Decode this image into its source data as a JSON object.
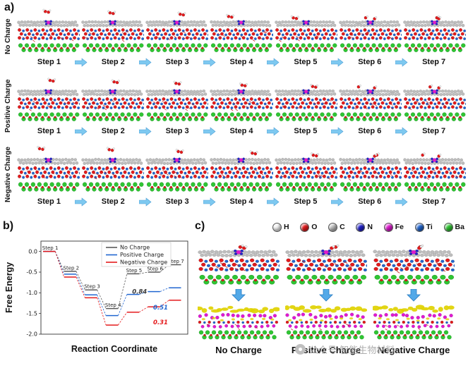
{
  "panel_a": {
    "label": "a)",
    "step_labels": [
      "Step 1",
      "Step 2",
      "Step 3",
      "Step 4",
      "Step 5",
      "Step 6",
      "Step 7"
    ],
    "rows": [
      {
        "name": "No Charge"
      },
      {
        "name": "Positive Charge"
      },
      {
        "name": "Negative Charge"
      }
    ]
  },
  "atom_legend": [
    {
      "symbol": "H",
      "color": "#f4f4f4"
    },
    {
      "symbol": "O",
      "color": "#e41a1c"
    },
    {
      "symbol": "C",
      "color": "#bdbdbd"
    },
    {
      "symbol": "N",
      "color": "#2121cc"
    },
    {
      "symbol": "Fe",
      "color": "#e01ad0"
    },
    {
      "symbol": "Ti",
      "color": "#2166d0"
    },
    {
      "symbol": "Ba",
      "color": "#2fc532"
    }
  ],
  "panel_b": {
    "label": "b)"
  },
  "chart_data": {
    "type": "line",
    "title": "",
    "xlabel": "Reaction Coordinate",
    "ylabel": "Free Energy",
    "ylim": [
      -2.0,
      0.25
    ],
    "yticks": [
      0.0,
      -0.5,
      -1.0,
      -1.5,
      -2.0
    ],
    "step_labels": [
      "Step 1",
      "Step 2",
      "Step 3",
      "Step 4",
      "Step 5",
      "Step 6",
      "Step 7"
    ],
    "legend_position": "upper right",
    "series": [
      {
        "name": "No Charge",
        "color": "#5a5a5a",
        "values": [
          0.0,
          -0.48,
          -0.93,
          -1.38,
          -0.54,
          -0.5,
          -0.32
        ]
      },
      {
        "name": "Positive Charge",
        "color": "#2166d0",
        "values": [
          0.0,
          -0.55,
          -1.05,
          -1.55,
          -1.04,
          -0.97,
          -0.88
        ]
      },
      {
        "name": "Negative Charge",
        "color": "#e41a1c",
        "values": [
          0.0,
          -0.62,
          -1.12,
          -1.78,
          -1.47,
          -1.34,
          -1.18
        ]
      }
    ],
    "annotations": [
      {
        "text": "0.84",
        "color": "#3a3a3a",
        "x_step": 4.35,
        "y": -1.02
      },
      {
        "text": "0.51",
        "color": "#2166d0",
        "x_step": 5.35,
        "y": -1.4
      },
      {
        "text": "0.31",
        "color": "#e41a1c",
        "x_step": 5.35,
        "y": -1.76
      }
    ]
  },
  "panel_c": {
    "label": "c)",
    "columns": [
      {
        "name": "No Charge"
      },
      {
        "name": "Positive Charge"
      },
      {
        "name": "Negative Charge"
      }
    ]
  },
  "watermark": {
    "text": "公众号·智能生物材料"
  }
}
